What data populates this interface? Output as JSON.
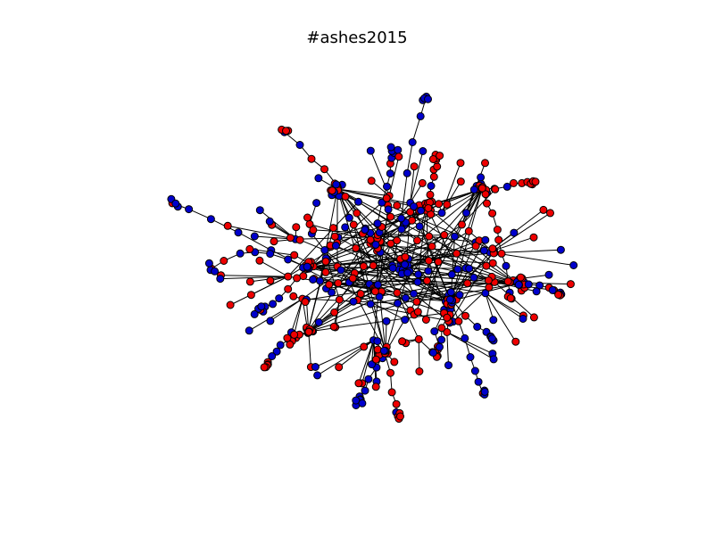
{
  "title": "#ashes2015",
  "colors": {
    "background": "#ffffff",
    "edge": "#000000",
    "node_red": "#ee0000",
    "node_blue": "#0000cc",
    "node_outline": "#000000"
  },
  "graph": {
    "type": "network",
    "node_colors": [
      "red",
      "blue"
    ],
    "hubs": [
      {
        "id": "hub-a",
        "color": "red"
      },
      {
        "id": "hub-b",
        "color": "red"
      },
      {
        "id": "hub-c",
        "color": "red"
      },
      {
        "id": "hub-d",
        "color": "blue"
      },
      {
        "id": "hub-e",
        "color": "red"
      },
      {
        "id": "hub-f",
        "color": "blue"
      },
      {
        "id": "hub-g",
        "color": "red"
      },
      {
        "id": "hub-h",
        "color": "red"
      },
      {
        "id": "hub-i",
        "color": "red"
      },
      {
        "id": "hub-j",
        "color": "red"
      },
      {
        "id": "hub-k",
        "color": "red"
      }
    ]
  }
}
